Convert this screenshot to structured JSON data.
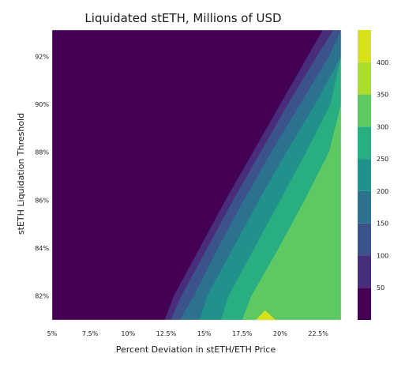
{
  "chart_data": {
    "type": "contour",
    "title": "Liquidated stETH, Millions of USD",
    "xlabel": "Percent Deviation in stETH/ETH Price",
    "ylabel": "stETH Liquidation Threshold",
    "x_tick_labels": [
      "5%",
      "7.5%",
      "10%",
      "12.5%",
      "15%",
      "17.5%",
      "20%",
      "22.5%"
    ],
    "x_tick_values": [
      5,
      7.5,
      10,
      12.5,
      15,
      17.5,
      20,
      22.5
    ],
    "y_tick_labels": [
      "82%",
      "84%",
      "86%",
      "88%",
      "90%",
      "92%"
    ],
    "y_tick_values": [
      82,
      84,
      86,
      88,
      90,
      92
    ],
    "xlim": [
      5,
      24
    ],
    "ylim": [
      81,
      93.1
    ],
    "colorbar": {
      "levels": [
        0,
        50,
        100,
        150,
        200,
        250,
        300,
        350,
        400,
        450
      ],
      "tick_labels": [
        "50",
        "100",
        "150",
        "200",
        "250",
        "300",
        "350",
        "400"
      ],
      "colors": [
        "#440154",
        "#472d7b",
        "#3b528b",
        "#2c728e",
        "#21918c",
        "#28ae80",
        "#5ec962",
        "#addc30",
        "#d7e219"
      ]
    },
    "level_boundaries_x_at_y": {
      "y": [
        81,
        82,
        84,
        86,
        88,
        90,
        92,
        93.1
      ],
      "x_50": [
        12.4,
        13.0,
        14.7,
        16.4,
        18.2,
        20.0,
        21.8,
        22.8
      ],
      "x_100": [
        12.8,
        13.5,
        15.2,
        16.9,
        18.7,
        20.5,
        22.4,
        23.5
      ],
      "x_150": [
        13.4,
        14.3,
        15.9,
        17.6,
        19.4,
        21.3,
        23.2,
        24.0
      ],
      "x_200": [
        14.7,
        15.2,
        16.9,
        18.6,
        20.4,
        22.3,
        24.0,
        24.0
      ],
      "x_250": [
        16.1,
        16.6,
        18.3,
        20.0,
        21.7,
        23.3,
        24.0,
        24.0
      ],
      "x_300": [
        17.5,
        18.1,
        19.9,
        21.6,
        23.2,
        24.0,
        24.0,
        24.0
      ]
    },
    "peak_region": {
      "x": [
        18.4,
        19.0,
        19.7
      ],
      "y": [
        81,
        81.4,
        81
      ],
      "level": 350
    }
  }
}
